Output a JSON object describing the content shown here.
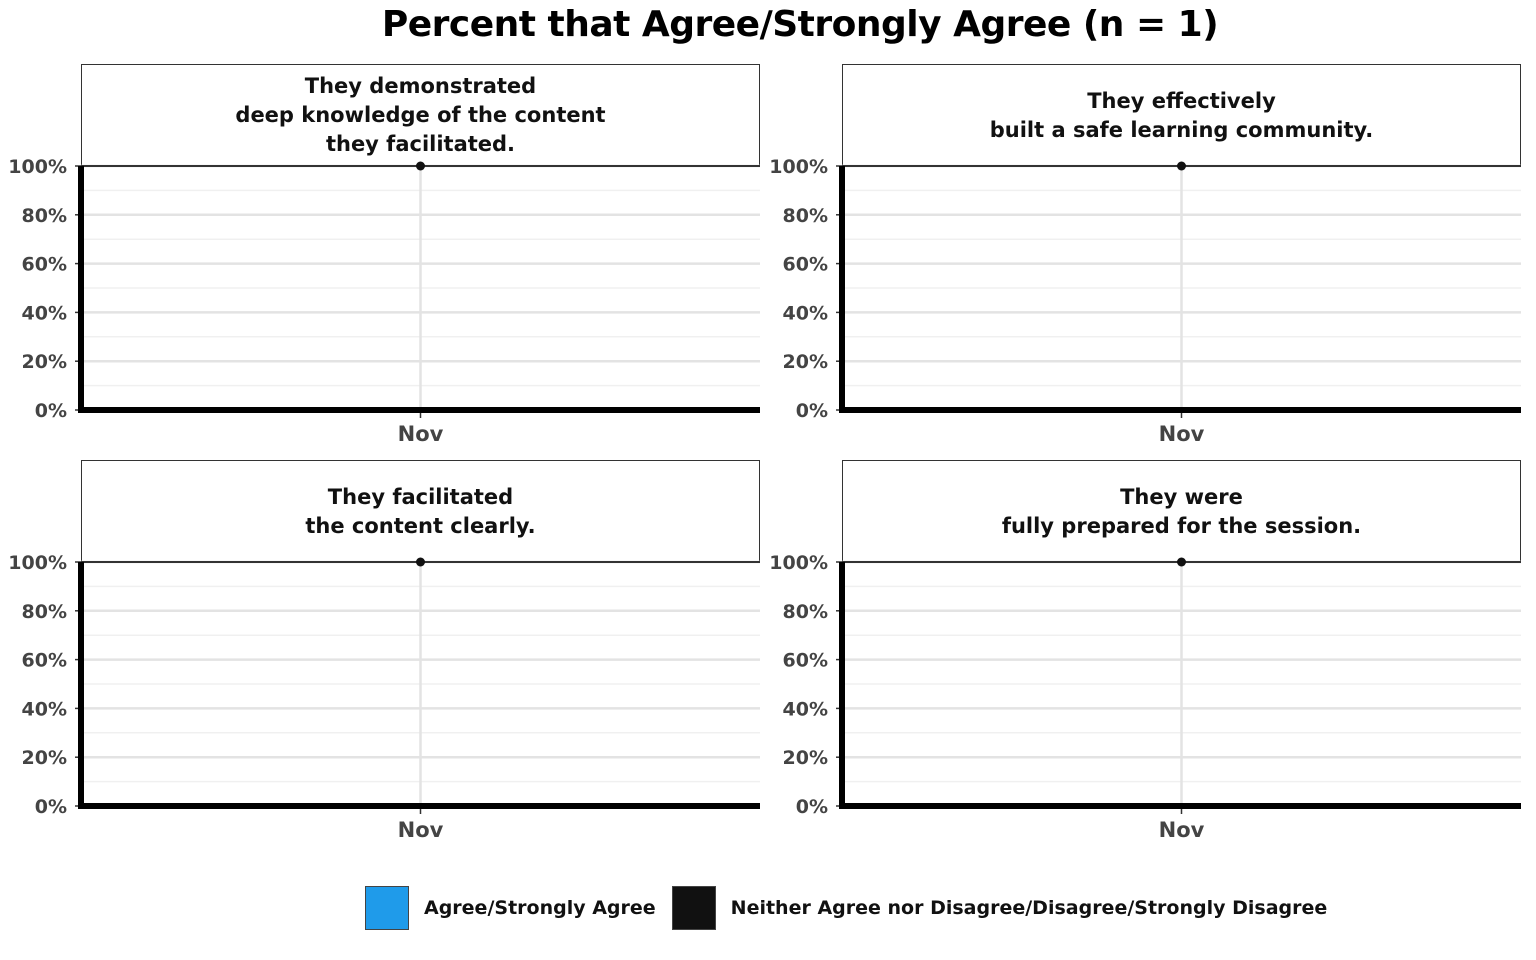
{
  "title": "Percent that Agree/Strongly Agree (n = 1)",
  "legend": [
    {
      "label": "Agree/Strongly Agree",
      "color": "#1f9bea"
    },
    {
      "label": "Neither Agree nor Disagree/Disagree/Strongly Disagree",
      "color": "#111111"
    }
  ],
  "chart_data": [
    {
      "type": "line",
      "title": "They demonstrated\ndeep knowledge of the content\nthey facilitated.",
      "categories": [
        "Nov"
      ],
      "series": [
        {
          "values": [
            100
          ]
        }
      ],
      "yticks": [
        "0%",
        "20%",
        "40%",
        "60%",
        "80%",
        "100%"
      ],
      "ylim": [
        0,
        100
      ],
      "grid": true
    },
    {
      "type": "line",
      "title": "They effectively\nbuilt a safe learning community.",
      "categories": [
        "Nov"
      ],
      "series": [
        {
          "values": [
            100
          ]
        }
      ],
      "yticks": [
        "0%",
        "20%",
        "40%",
        "60%",
        "80%",
        "100%"
      ],
      "ylim": [
        0,
        100
      ],
      "grid": true
    },
    {
      "type": "line",
      "title": "They facilitated\nthe content clearly.",
      "categories": [
        "Nov"
      ],
      "series": [
        {
          "values": [
            100
          ]
        }
      ],
      "yticks": [
        "0%",
        "20%",
        "40%",
        "60%",
        "80%",
        "100%"
      ],
      "ylim": [
        0,
        100
      ],
      "grid": true
    },
    {
      "type": "line",
      "title": "They were\nfully prepared for the session.",
      "categories": [
        "Nov"
      ],
      "series": [
        {
          "values": [
            100
          ]
        }
      ],
      "yticks": [
        "0%",
        "20%",
        "40%",
        "60%",
        "80%",
        "100%"
      ],
      "ylim": [
        0,
        100
      ],
      "grid": true
    }
  ]
}
